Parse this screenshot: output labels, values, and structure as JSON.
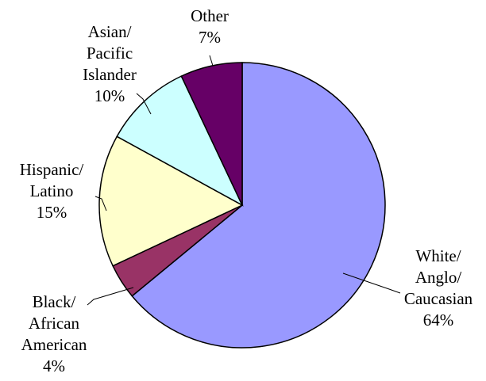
{
  "chart_data": {
    "type": "pie",
    "title": "",
    "slices": [
      {
        "label": [
          "White/",
          "Anglo/",
          "Caucasian"
        ],
        "value": 64,
        "value_label": "64%",
        "color": "#9999ff"
      },
      {
        "label": [
          "Black/",
          "African",
          "American"
        ],
        "value": 4,
        "value_label": "4%",
        "color": "#993366"
      },
      {
        "label": [
          "Hispanic/",
          "Latino"
        ],
        "value": 15,
        "value_label": "15%",
        "color": "#ffffcc"
      },
      {
        "label": [
          "Asian/",
          "Pacific",
          "Islander"
        ],
        "value": 10,
        "value_label": "10%",
        "color": "#ccffff"
      },
      {
        "label": [
          "Other"
        ],
        "value": 7,
        "value_label": "7%",
        "color": "#660066"
      }
    ],
    "start": "12 o'clock",
    "direction": "clockwise",
    "legend": "none"
  }
}
